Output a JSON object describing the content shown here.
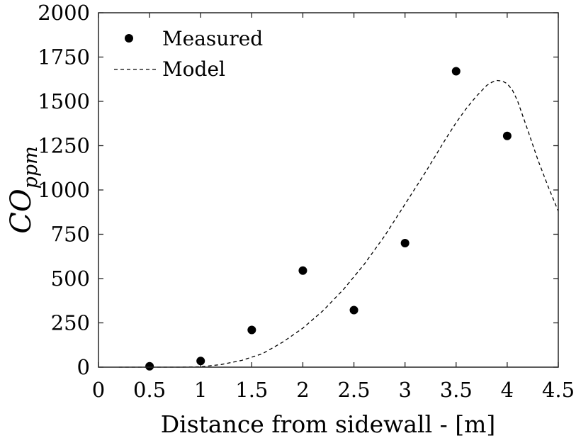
{
  "chart_data": {
    "type": "scatter",
    "xlabel": "Distance from sidewall - [m]",
    "ylabel": {
      "main": "CO",
      "sub": "ppm"
    },
    "xlim": [
      0,
      4.5
    ],
    "ylim": [
      0,
      2000
    ],
    "xticks": [
      0,
      0.5,
      1,
      1.5,
      2,
      2.5,
      3,
      3.5,
      4,
      4.5
    ],
    "xtick_labels": [
      "0",
      "0.5",
      "1",
      "1.5",
      "2",
      "2.5",
      "3",
      "3.5",
      "4",
      "4.5"
    ],
    "yticks": [
      0,
      250,
      500,
      750,
      1000,
      1250,
      1500,
      1750,
      2000
    ],
    "ytick_labels": [
      "0",
      "250",
      "500",
      "750",
      "1000",
      "1250",
      "1500",
      "1750",
      "2000"
    ],
    "grid": false,
    "legend_position": "top-left",
    "series": [
      {
        "name": "Measured",
        "type": "scatter",
        "color": "#000000",
        "x": [
          0.5,
          1.0,
          1.5,
          2.0,
          2.5,
          3.0,
          3.5,
          4.0
        ],
        "y": [
          5,
          35,
          210,
          545,
          322,
          700,
          1670,
          1305
        ]
      },
      {
        "name": "Model",
        "type": "line",
        "style": "dashed",
        "color": "#000000",
        "x": [
          0.2,
          0.4,
          0.6,
          0.8,
          1.0,
          1.2,
          1.4,
          1.6,
          1.8,
          2.0,
          2.2,
          2.4,
          2.6,
          2.8,
          3.0,
          3.2,
          3.4,
          3.5,
          3.6,
          3.7,
          3.8,
          3.85,
          3.9,
          3.95,
          4.0,
          4.05,
          4.1,
          4.2,
          4.3,
          4.4,
          4.5
        ],
        "y": [
          0,
          0,
          0,
          0,
          2,
          15,
          38,
          75,
          140,
          220,
          320,
          440,
          580,
          740,
          920,
          1100,
          1290,
          1380,
          1460,
          1530,
          1590,
          1608,
          1618,
          1615,
          1600,
          1565,
          1505,
          1340,
          1170,
          1020,
          880
        ]
      }
    ]
  }
}
